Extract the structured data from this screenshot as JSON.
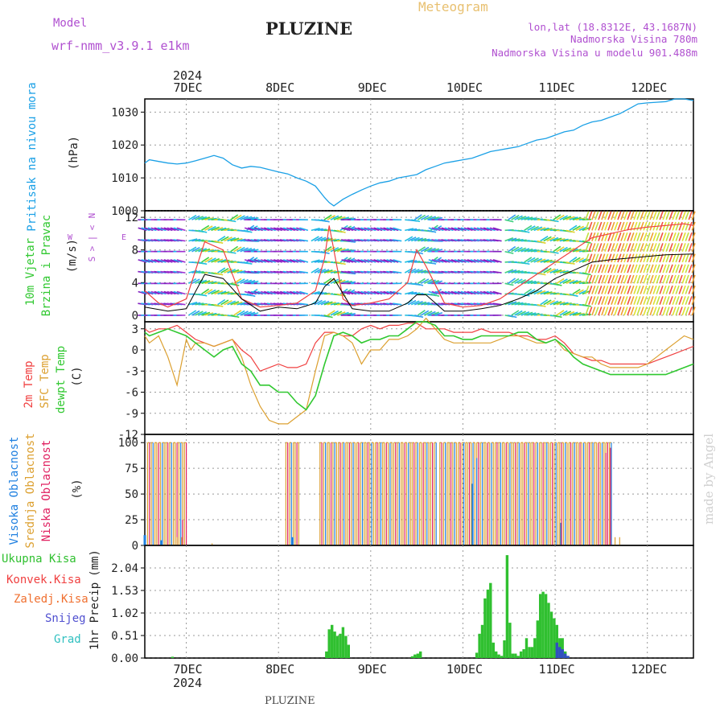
{
  "header": {
    "model_label": "Model",
    "model_name": "wrf-nmm_v3.9.1  e1km",
    "title": "PLUZINE",
    "product": "Meteogram",
    "lonlat": "lon,lat (18.8312E, 43.1687N)",
    "elevation": "Nadmorska Visina 780m",
    "model_elevation": "Nadmorska Visina u modelu 901.488m",
    "year_top": "2024",
    "year_bottom": "2024",
    "footer": "PLUZINE",
    "watermark": "made by Angel"
  },
  "colors": {
    "pressure": "#1aa0e6",
    "t2m": "#f04040",
    "sfc": "#dca030",
    "dewpt": "#30c830",
    "high_cloud": "#2080e0",
    "mid_cloud": "#dca030",
    "low_cloud": "#e02060",
    "total_precip": "#30c030",
    "snow": "#3050c0",
    "label_purple": "#b050d0",
    "title_orange": "#e8c070"
  },
  "time_axis": {
    "labels": [
      "7DEC",
      "8DEC",
      "9DEC",
      "10DEC",
      "11DEC",
      "12DEC"
    ],
    "start_day": 6.55,
    "end_day": 12.5
  },
  "chart_data": [
    {
      "type": "line",
      "ylabel_name": "Pritisak na nivou mora",
      "ylabel_unit": "(hPa)",
      "ylim": [
        1000,
        1034
      ],
      "yticks": [
        1000,
        1010,
        1020,
        1030
      ],
      "series": [
        {
          "x": [
            6.55,
            6.6,
            6.7,
            6.8,
            6.9,
            7.0,
            7.1,
            7.2,
            7.3,
            7.4,
            7.5,
            7.6,
            7.7,
            7.8,
            7.9,
            8.0,
            8.1,
            8.2,
            8.3,
            8.4,
            8.5,
            8.55,
            8.6,
            8.7,
            8.8,
            8.9,
            9.0,
            9.1,
            9.2,
            9.3,
            9.4,
            9.5,
            9.6,
            9.7,
            9.8,
            9.9,
            10.0,
            10.1,
            10.2,
            10.3,
            10.4,
            10.5,
            10.6,
            10.7,
            10.8,
            10.9,
            11.0,
            11.1,
            11.2,
            11.3,
            11.4,
            11.5,
            11.6,
            11.7,
            11.8,
            11.9,
            12.0,
            12.1,
            12.2,
            12.3,
            12.4,
            12.5
          ],
          "values": [
            1014.5,
            1015.5,
            1015,
            1014.5,
            1014.2,
            1014.5,
            1015.2,
            1016,
            1016.8,
            1016,
            1014,
            1013,
            1013.5,
            1013.2,
            1012.5,
            1011.8,
            1011.2,
            1010,
            1009,
            1007.5,
            1004,
            1002.5,
            1001.5,
            1003.5,
            1005,
            1006.3,
            1007.5,
            1008.5,
            1009,
            1010,
            1010.5,
            1011,
            1012.5,
            1013.5,
            1014.5,
            1015,
            1015.5,
            1016,
            1017,
            1018,
            1018.5,
            1019,
            1019.5,
            1020.5,
            1021.5,
            1022,
            1023,
            1024,
            1024.5,
            1026,
            1027,
            1027.5,
            1028.5,
            1029.5,
            1031,
            1032.5,
            1032.8,
            1033,
            1033.2,
            1034,
            1034,
            1033.5
          ]
        }
      ]
    },
    {
      "type": "line",
      "ylabel_name": "10m Vjetar",
      "ylabel_sub": "Brzina i Pravac",
      "ylabel_unit": "(m/s)",
      "compass": [
        "N",
        "<",
        "|",
        ">",
        "S",
        "W",
        "E"
      ],
      "ylim": [
        -0.8,
        12.8
      ],
      "yticks": [
        0,
        4,
        8,
        12
      ],
      "wind_levels_ms": [
        0,
        1.3,
        2.6,
        3.9,
        5.2,
        6.5,
        7.8,
        9.1,
        10.4,
        11.7
      ],
      "series": [
        {
          "name": "gust",
          "x": [
            6.55,
            6.7,
            6.8,
            7.0,
            7.2,
            7.4,
            7.5,
            7.6,
            7.8,
            8.0,
            8.2,
            8.4,
            8.5,
            8.55,
            8.6,
            8.7,
            8.8,
            9.0,
            9.2,
            9.4,
            9.5,
            9.6,
            9.8,
            10.0,
            10.2,
            10.4,
            10.6,
            10.8,
            11.0,
            11.2,
            11.4,
            11.6,
            11.8,
            12.0,
            12.2,
            12.4,
            12.5
          ],
          "values": [
            3,
            1.5,
            1,
            2,
            9,
            8,
            5,
            2,
            1,
            1.2,
            1.5,
            3,
            7,
            11,
            8,
            2,
            1.2,
            1.5,
            2,
            4,
            8,
            6,
            1.5,
            1,
            1.2,
            2,
            3.5,
            5,
            6.5,
            8,
            9.5,
            10,
            10.5,
            10.8,
            11,
            11.2,
            11
          ]
        },
        {
          "name": "speed",
          "x": [
            6.55,
            6.8,
            7.0,
            7.2,
            7.4,
            7.6,
            7.8,
            8.0,
            8.2,
            8.4,
            8.5,
            8.6,
            8.8,
            9.0,
            9.2,
            9.4,
            9.5,
            9.6,
            9.8,
            10.0,
            10.2,
            10.4,
            10.6,
            10.8,
            11.0,
            11.2,
            11.4,
            11.6,
            11.8,
            12.0,
            12.2,
            12.5
          ],
          "values": [
            1,
            0.5,
            0.8,
            5,
            4.5,
            2,
            0.5,
            1,
            0.8,
            1.5,
            3.5,
            4.5,
            0.8,
            0.5,
            0.5,
            1.5,
            2.5,
            2.5,
            0.5,
            0.5,
            0.8,
            1.2,
            2,
            3,
            4.5,
            5.5,
            6.5,
            6.8,
            7,
            7.2,
            7.4,
            7.5
          ]
        }
      ]
    },
    {
      "type": "line",
      "ylabel_names": [
        "2m Temp",
        "SFC Temp",
        "dewpt Temp"
      ],
      "ylabel_unit": "(C)",
      "ylim": [
        -12,
        4
      ],
      "yticks": [
        -12,
        -9,
        -6,
        -3,
        0,
        3
      ],
      "series": [
        {
          "name": "2m Temp",
          "x": [
            6.55,
            6.6,
            6.7,
            6.8,
            6.9,
            7.0,
            7.1,
            7.2,
            7.3,
            7.4,
            7.5,
            7.6,
            7.7,
            7.8,
            7.9,
            8.0,
            8.1,
            8.2,
            8.3,
            8.4,
            8.5,
            8.6,
            8.7,
            8.8,
            8.9,
            9.0,
            9.1,
            9.2,
            9.3,
            9.4,
            9.5,
            9.6,
            9.7,
            9.8,
            9.9,
            10.0,
            10.1,
            10.2,
            10.3,
            10.4,
            10.5,
            10.6,
            10.7,
            10.8,
            10.9,
            11.0,
            11.1,
            11.2,
            11.3,
            11.4,
            11.5,
            11.6,
            11.7,
            11.8,
            11.9,
            12.0,
            12.1,
            12.2,
            12.3,
            12.4,
            12.5
          ],
          "values": [
            3,
            2.5,
            3,
            3,
            3.5,
            2.5,
            1.5,
            1,
            0.5,
            1,
            1.5,
            0,
            -1,
            -3,
            -2.5,
            -2,
            -2.5,
            -2.5,
            -2,
            1,
            2.5,
            2.5,
            2,
            2,
            3,
            3.5,
            3,
            3.5,
            3.5,
            3.8,
            3.8,
            3,
            3,
            3,
            2.5,
            2.5,
            2.5,
            3,
            2.5,
            2.5,
            2.5,
            2,
            2,
            1.5,
            1.5,
            2,
            1,
            -0.5,
            -1,
            -1.5,
            -1.5,
            -2,
            -2,
            -2,
            -2,
            -2,
            -1.5,
            -1,
            -0.5,
            0,
            0.5
          ]
        },
        {
          "name": "SFC Temp",
          "x": [
            6.55,
            6.6,
            6.7,
            6.8,
            6.9,
            7.0,
            7.05,
            7.1,
            7.2,
            7.3,
            7.4,
            7.5,
            7.6,
            7.7,
            7.8,
            7.9,
            8.0,
            8.1,
            8.2,
            8.3,
            8.4,
            8.5,
            8.6,
            8.7,
            8.8,
            8.9,
            9.0,
            9.1,
            9.2,
            9.3,
            9.4,
            9.5,
            9.6,
            9.7,
            9.8,
            9.9,
            10.0,
            10.1,
            10.2,
            10.3,
            10.4,
            10.5,
            10.6,
            10.7,
            10.8,
            10.9,
            11.0,
            11.1,
            11.2,
            11.3,
            11.4,
            11.5,
            11.6,
            11.7,
            11.8,
            11.9,
            12.0,
            12.1,
            12.2,
            12.3,
            12.4,
            12.5
          ],
          "values": [
            2,
            1,
            2,
            -1,
            -5,
            1.5,
            0,
            1,
            1,
            0.5,
            1,
            1.5,
            -1,
            -5,
            -8,
            -10,
            -10.5,
            -10.5,
            -9.5,
            -8.5,
            -3,
            2,
            2.5,
            2,
            1,
            -2,
            0,
            0,
            1.5,
            1.5,
            2,
            3,
            4.5,
            3,
            1.5,
            1,
            1,
            1,
            1,
            1,
            1.5,
            2,
            2,
            1.5,
            1,
            1,
            1.5,
            0,
            -0.5,
            -1,
            -1,
            -2,
            -2.5,
            -2.5,
            -2.5,
            -2.5,
            -2,
            -1,
            0,
            1,
            2,
            1.5
          ]
        },
        {
          "name": "dewpt Temp",
          "x": [
            6.55,
            6.6,
            6.7,
            6.8,
            6.9,
            7.0,
            7.1,
            7.2,
            7.3,
            7.4,
            7.5,
            7.6,
            7.7,
            7.8,
            7.9,
            8.0,
            8.1,
            8.2,
            8.3,
            8.4,
            8.5,
            8.6,
            8.7,
            8.8,
            8.9,
            9.0,
            9.1,
            9.2,
            9.3,
            9.4,
            9.5,
            9.6,
            9.7,
            9.8,
            9.9,
            10.0,
            10.1,
            10.2,
            10.3,
            10.4,
            10.5,
            10.6,
            10.7,
            10.8,
            10.9,
            11.0,
            11.1,
            11.2,
            11.3,
            11.4,
            11.5,
            11.6,
            11.7,
            11.8,
            11.9,
            12.0,
            12.1,
            12.2,
            12.3,
            12.4,
            12.5
          ],
          "values": [
            2.5,
            2,
            2.5,
            3,
            2.5,
            2,
            1,
            0,
            -1,
            0,
            0.5,
            -2,
            -3,
            -5,
            -5,
            -6,
            -6,
            -7.5,
            -8.5,
            -6.5,
            -2,
            2,
            2.5,
            2,
            1,
            1.5,
            1.5,
            2,
            2,
            3,
            4,
            4,
            3.5,
            2,
            2,
            1.5,
            1.5,
            2,
            2,
            2,
            2,
            2.5,
            2.5,
            1.5,
            1,
            1.5,
            0.5,
            -1,
            -2,
            -2.5,
            -3,
            -3.5,
            -3.5,
            -3.5,
            -3.5,
            -3.5,
            -3.5,
            -3.5,
            -3,
            -2.5,
            -2
          ]
        }
      ]
    },
    {
      "type": "bar",
      "ylabel_names": [
        "Visoka Oblacnost",
        "Srednja Oblacnost",
        "Niska Oblacnost"
      ],
      "ylabel_unit": "(%)",
      "ylim": [
        0,
        100
      ],
      "yticks": [
        0,
        25,
        50,
        75,
        100
      ],
      "cloud_periods": [
        [
          6.58,
          7.0
        ],
        [
          8.08,
          8.22
        ],
        [
          8.45,
          9.72
        ],
        [
          9.75,
          11.62
        ]
      ],
      "sparse_bars": [
        [
          6.55,
          10,
          "high"
        ],
        [
          6.73,
          5,
          "high"
        ],
        [
          6.96,
          25,
          "low"
        ],
        [
          6.9,
          8,
          "mid"
        ],
        [
          6.95,
          8,
          "mid"
        ],
        [
          7.28,
          2,
          "mid"
        ],
        [
          8.15,
          8,
          "high"
        ],
        [
          10.1,
          60,
          "high"
        ],
        [
          10.15,
          85,
          "high"
        ],
        [
          11.06,
          22,
          "high"
        ],
        [
          11.65,
          8,
          "mid"
        ],
        [
          11.7,
          8,
          "mid"
        ],
        [
          11.55,
          90,
          "low"
        ],
        [
          11.6,
          95,
          "low"
        ]
      ]
    },
    {
      "type": "bar",
      "ylabel_name": "1hr Precip",
      "ylabel_unit": "(mm)",
      "legend": [
        "Ukupna Kisa",
        "Konvek.Kisa",
        "Zaledj.Kisa",
        "Snijeg",
        "Grad"
      ],
      "legend_colors": [
        "#30c030",
        "#f04040",
        "#f07030",
        "#5050d0",
        "#30c0c0"
      ],
      "ylim": [
        0,
        2.55
      ],
      "yticks": [
        0,
        0.51,
        1.02,
        1.53,
        2.04
      ],
      "x": [
        6.85,
        8.52,
        8.55,
        8.58,
        8.61,
        8.64,
        8.67,
        8.7,
        8.73,
        8.76,
        9.45,
        9.48,
        9.51,
        9.54,
        10.15,
        10.18,
        10.21,
        10.24,
        10.27,
        10.3,
        10.33,
        10.36,
        10.39,
        10.42,
        10.45,
        10.48,
        10.51,
        10.54,
        10.57,
        10.6,
        10.63,
        10.66,
        10.69,
        10.72,
        10.75,
        10.78,
        10.81,
        10.84,
        10.87,
        10.9,
        10.93,
        10.96,
        10.99,
        11.02,
        11.05,
        11.08,
        11.11
      ],
      "values": [
        0.03,
        0.15,
        0.65,
        0.75,
        0.6,
        0.5,
        0.55,
        0.7,
        0.5,
        0.3,
        0.04,
        0.08,
        0.1,
        0.15,
        0.12,
        0.55,
        0.75,
        1.35,
        1.55,
        1.7,
        0.35,
        0.15,
        0.08,
        0.05,
        0.4,
        2.33,
        0.8,
        0.1,
        0.1,
        0.05,
        0.15,
        0.2,
        0.45,
        0.25,
        0.25,
        0.45,
        0.85,
        1.45,
        1.5,
        1.45,
        1.25,
        1.05,
        0.9,
        0.75,
        0.45,
        0.45,
        0.15
      ],
      "snow_x": [
        11.02,
        11.05,
        11.08,
        11.11,
        11.14
      ],
      "snow_values": [
        0.35,
        0.25,
        0.2,
        0.1,
        0.05
      ]
    }
  ]
}
